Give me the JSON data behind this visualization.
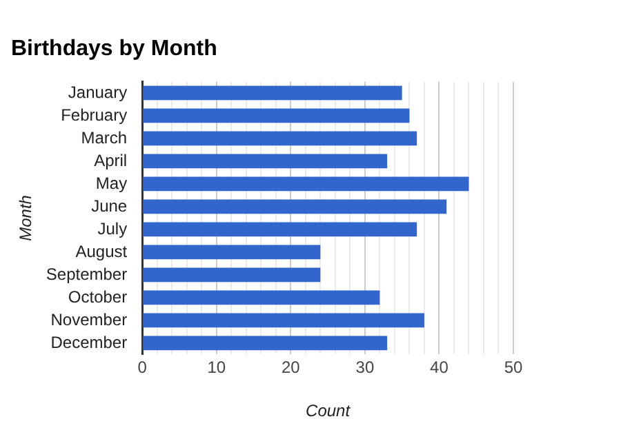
{
  "chart_data": {
    "type": "bar",
    "orientation": "horizontal",
    "title": "Birthdays by Month",
    "xlabel": "Count",
    "ylabel": "Month",
    "categories": [
      "January",
      "February",
      "March",
      "April",
      "May",
      "June",
      "July",
      "August",
      "September",
      "October",
      "November",
      "December"
    ],
    "values": [
      35,
      36,
      37,
      33,
      44,
      41,
      37,
      24,
      24,
      32,
      38,
      33
    ],
    "color": "#3366cc",
    "xlim": [
      0,
      50
    ],
    "xticks": [
      0,
      {
        "value": 2,
        "label": null
      },
      {
        "value": 4,
        "label": null
      },
      {
        "value": 6,
        "label": null
      },
      {
        "value": 8,
        "label": null
      },
      10,
      {
        "value": 12,
        "label": null
      },
      {
        "value": 14,
        "label": null
      },
      {
        "value": 16,
        "label": null
      },
      {
        "value": 18,
        "label": null
      },
      20,
      {
        "value": 22,
        "label": null
      },
      {
        "value": 24,
        "label": null
      },
      {
        "value": 26,
        "label": null
      },
      {
        "value": 28,
        "label": null
      },
      30,
      {
        "value": 32,
        "label": null
      },
      {
        "value": 34,
        "label": null
      },
      {
        "value": 36,
        "label": null
      },
      {
        "value": 38,
        "label": null
      },
      40,
      {
        "value": 42,
        "label": null
      },
      {
        "value": 44,
        "label": null
      },
      {
        "value": 46,
        "label": null
      },
      {
        "value": 48,
        "label": null
      },
      50
    ],
    "grid": true,
    "legend": false
  }
}
